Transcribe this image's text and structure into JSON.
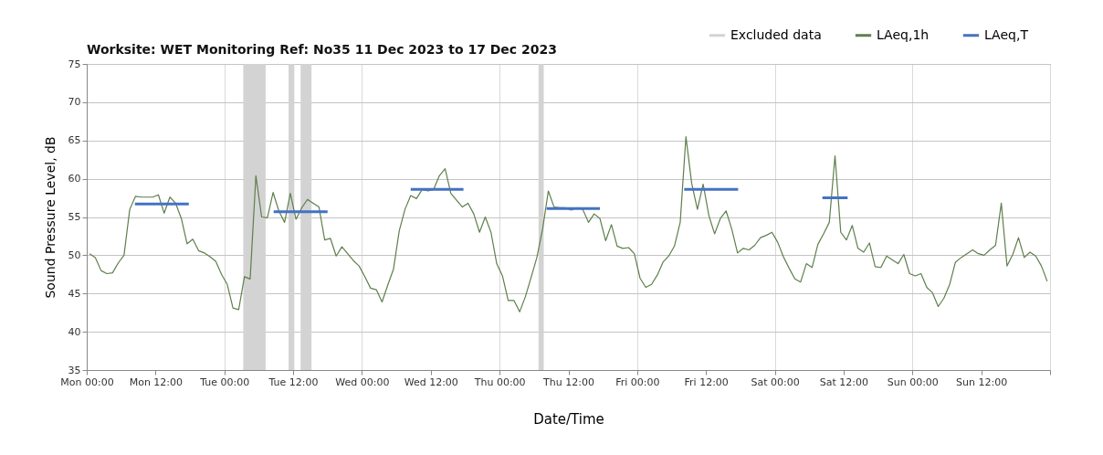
{
  "chart_data": {
    "type": "line",
    "title": "Worksite: WET   Monitoring Ref: No35   11 Dec 2023 to 17 Dec 2023",
    "xlabel": "Date/Time",
    "ylabel": "Sound Pressure Level, dB",
    "xlim": [
      "2023-12-11T00:00",
      "2023-12-18T00:00"
    ],
    "xticks": [
      {
        "value": "2023-12-11T00:00",
        "label": "Mon 00:00"
      },
      {
        "value": "2023-12-11T12:00",
        "label": "Mon 12:00"
      },
      {
        "value": "2023-12-12T00:00",
        "label": "Tue 00:00"
      },
      {
        "value": "2023-12-12T12:00",
        "label": "Tue 12:00"
      },
      {
        "value": "2023-12-13T00:00",
        "label": "Wed 00:00"
      },
      {
        "value": "2023-12-13T12:00",
        "label": "Wed 12:00"
      },
      {
        "value": "2023-12-14T00:00",
        "label": "Thu 00:00"
      },
      {
        "value": "2023-12-14T12:00",
        "label": "Thu 12:00"
      },
      {
        "value": "2023-12-15T00:00",
        "label": "Fri 00:00"
      },
      {
        "value": "2023-12-15T12:00",
        "label": "Fri 12:00"
      },
      {
        "value": "2023-12-16T00:00",
        "label": "Sat 00:00"
      },
      {
        "value": "2023-12-16T12:00",
        "label": "Sat 12:00"
      },
      {
        "value": "2023-12-17T00:00",
        "label": "Sun 00:00"
      },
      {
        "value": "2023-12-17T12:00",
        "label": "Sun 12:00"
      },
      {
        "value": "2023-12-18T00:00",
        "label": null
      }
    ],
    "ylim": [
      35,
      75
    ],
    "yticks": [
      35,
      40,
      45,
      50,
      55,
      60,
      65,
      70,
      75
    ],
    "grid": true,
    "legend": "top right",
    "marker": "none",
    "line_style": "solid",
    "bands": [
      {
        "axis": "x",
        "from": "2023-12-12T03:18",
        "to": "2023-12-12T07:12",
        "label": "Excluded data",
        "color": "#d3d3d3"
      },
      {
        "axis": "x",
        "from": "2023-12-12T11:12",
        "to": "2023-12-12T12:12",
        "color": "#d3d3d3"
      },
      {
        "axis": "x",
        "from": "2023-12-12T13:18",
        "to": "2023-12-12T15:12",
        "color": "#d3d3d3"
      },
      {
        "axis": "x",
        "from": "2023-12-14T06:48",
        "to": "2023-12-14T07:42",
        "color": "#d3d3d3"
      }
    ],
    "series": [
      {
        "name": "LAeq,1h",
        "color": "#5e7f4c",
        "x": [
          "2023-12-11T00:30",
          "2023-12-11T01:30",
          "2023-12-11T02:30",
          "2023-12-11T03:30",
          "2023-12-11T04:30",
          "2023-12-11T05:30",
          "2023-12-11T06:30",
          "2023-12-11T07:30",
          "2023-12-11T08:30",
          "2023-12-11T09:30",
          "2023-12-11T10:30",
          "2023-12-11T11:30",
          "2023-12-11T12:30",
          "2023-12-11T13:30",
          "2023-12-11T14:30",
          "2023-12-11T15:30",
          "2023-12-11T16:30",
          "2023-12-11T17:30",
          "2023-12-11T18:30",
          "2023-12-11T19:30",
          "2023-12-11T20:30",
          "2023-12-11T21:30",
          "2023-12-11T22:30",
          "2023-12-11T23:30",
          "2023-12-12T00:30",
          "2023-12-12T01:30",
          "2023-12-12T02:30",
          "2023-12-12T03:30",
          "2023-12-12T04:30",
          "2023-12-12T05:30",
          "2023-12-12T06:30",
          "2023-12-12T07:30",
          "2023-12-12T08:30",
          "2023-12-12T09:30",
          "2023-12-12T10:30",
          "2023-12-12T11:30",
          "2023-12-12T12:30",
          "2023-12-12T13:30",
          "2023-12-12T14:30",
          "2023-12-12T15:30",
          "2023-12-12T16:30",
          "2023-12-12T17:30",
          "2023-12-12T18:30",
          "2023-12-12T19:30",
          "2023-12-12T20:30",
          "2023-12-12T21:30",
          "2023-12-12T22:30",
          "2023-12-12T23:30",
          "2023-12-13T00:30",
          "2023-12-13T01:30",
          "2023-12-13T02:30",
          "2023-12-13T03:30",
          "2023-12-13T04:30",
          "2023-12-13T05:30",
          "2023-12-13T06:30",
          "2023-12-13T07:30",
          "2023-12-13T08:30",
          "2023-12-13T09:30",
          "2023-12-13T10:30",
          "2023-12-13T11:30",
          "2023-12-13T12:30",
          "2023-12-13T13:30",
          "2023-12-13T14:30",
          "2023-12-13T15:30",
          "2023-12-13T16:30",
          "2023-12-13T17:30",
          "2023-12-13T18:30",
          "2023-12-13T19:30",
          "2023-12-13T20:30",
          "2023-12-13T21:30",
          "2023-12-13T22:30",
          "2023-12-13T23:30",
          "2023-12-14T00:30",
          "2023-12-14T01:30",
          "2023-12-14T02:30",
          "2023-12-14T03:30",
          "2023-12-14T04:30",
          "2023-12-14T05:30",
          "2023-12-14T06:30",
          "2023-12-14T07:30",
          "2023-12-14T08:30",
          "2023-12-14T09:30",
          "2023-12-14T10:30",
          "2023-12-14T11:30",
          "2023-12-14T12:30",
          "2023-12-14T13:30",
          "2023-12-14T14:30",
          "2023-12-14T15:30",
          "2023-12-14T16:30",
          "2023-12-14T17:30",
          "2023-12-14T18:30",
          "2023-12-14T19:30",
          "2023-12-14T20:30",
          "2023-12-14T21:30",
          "2023-12-14T22:30",
          "2023-12-14T23:30",
          "2023-12-15T00:30",
          "2023-12-15T01:30",
          "2023-12-15T02:30",
          "2023-12-15T03:30",
          "2023-12-15T04:30",
          "2023-12-15T05:30",
          "2023-12-15T06:30",
          "2023-12-15T07:30",
          "2023-12-15T08:30",
          "2023-12-15T09:30",
          "2023-12-15T10:30",
          "2023-12-15T11:30",
          "2023-12-15T12:30",
          "2023-12-15T13:30",
          "2023-12-15T14:30",
          "2023-12-15T15:30",
          "2023-12-15T16:30",
          "2023-12-15T17:30",
          "2023-12-15T18:30",
          "2023-12-15T19:30",
          "2023-12-15T20:30",
          "2023-12-15T21:30",
          "2023-12-15T22:30",
          "2023-12-15T23:30",
          "2023-12-16T00:30",
          "2023-12-16T01:30",
          "2023-12-16T02:30",
          "2023-12-16T03:30",
          "2023-12-16T04:30",
          "2023-12-16T05:30",
          "2023-12-16T06:30",
          "2023-12-16T07:30",
          "2023-12-16T08:30",
          "2023-12-16T09:30",
          "2023-12-16T10:30",
          "2023-12-16T11:30",
          "2023-12-16T12:30",
          "2023-12-16T13:30",
          "2023-12-16T14:30",
          "2023-12-16T15:30",
          "2023-12-16T16:30",
          "2023-12-16T17:30",
          "2023-12-16T18:30",
          "2023-12-16T19:30",
          "2023-12-16T20:30",
          "2023-12-16T21:30",
          "2023-12-16T22:30",
          "2023-12-16T23:30",
          "2023-12-17T00:30",
          "2023-12-17T01:30",
          "2023-12-17T02:30",
          "2023-12-17T03:30",
          "2023-12-17T04:30",
          "2023-12-17T05:30",
          "2023-12-17T06:30",
          "2023-12-17T07:30",
          "2023-12-17T08:30",
          "2023-12-17T09:30",
          "2023-12-17T10:30",
          "2023-12-17T11:30",
          "2023-12-17T12:30",
          "2023-12-17T13:30",
          "2023-12-17T14:30",
          "2023-12-17T15:30",
          "2023-12-17T16:30",
          "2023-12-17T17:30",
          "2023-12-17T18:30",
          "2023-12-17T19:30",
          "2023-12-17T20:30",
          "2023-12-17T21:30",
          "2023-12-17T22:30",
          "2023-12-17T23:30"
        ],
        "values": [
          50.2,
          49.7,
          48.0,
          47.6,
          47.7,
          49.0,
          50.0,
          56.0,
          57.7,
          57.6,
          57.6,
          57.6,
          57.9,
          55.5,
          57.6,
          56.8,
          54.8,
          51.5,
          52.1,
          50.6,
          50.3,
          49.8,
          49.2,
          47.5,
          46.2,
          43.1,
          42.9,
          47.2,
          46.9,
          60.4,
          55.0,
          54.9,
          58.2,
          55.8,
          54.3,
          58.1,
          54.7,
          56.2,
          57.3,
          56.8,
          56.3,
          52.0,
          52.2,
          49.9,
          51.1,
          50.2,
          49.3,
          48.6,
          47.2,
          45.7,
          45.5,
          43.9,
          46.1,
          48.2,
          53.2,
          56.0,
          57.8,
          57.4,
          58.6,
          58.4,
          58.6,
          60.4,
          61.3,
          58.1,
          57.2,
          56.3,
          56.8,
          55.4,
          53.0,
          55.0,
          53.0,
          48.9,
          47.3,
          44.1,
          44.1,
          42.6,
          44.6,
          47.1,
          49.7,
          53.4,
          58.4,
          56.3,
          56.2,
          56.2,
          55.9,
          56.2,
          56.0,
          54.3,
          55.4,
          54.8,
          51.9,
          54.0,
          51.2,
          50.9,
          51.0,
          50.2,
          47.0,
          45.8,
          46.2,
          47.4,
          49.1,
          49.9,
          51.2,
          54.3,
          65.5,
          59.4,
          56.0,
          59.3,
          55.2,
          52.8,
          54.8,
          55.8,
          53.4,
          50.3,
          50.9,
          50.7,
          51.3,
          52.3,
          52.6,
          53.0,
          51.7,
          49.8,
          48.3,
          46.9,
          46.5,
          48.9,
          48.4,
          51.4,
          52.8,
          54.3,
          63.0,
          53.0,
          52.0,
          53.9,
          50.9,
          50.4,
          51.6,
          48.5,
          48.4,
          49.9,
          49.4,
          48.9,
          50.1,
          47.6,
          47.3,
          47.6,
          45.8,
          45.1,
          43.3,
          44.4,
          46.2,
          49.1,
          49.7,
          50.2,
          50.7,
          50.2,
          50.0,
          50.7,
          51.3,
          56.8,
          48.6,
          50.1,
          52.3,
          49.7,
          50.4,
          49.9,
          48.6,
          46.6
        ]
      },
      {
        "name": "LAeq,T",
        "color": "#4472c4",
        "x": [
          "2023-12-11T08:24",
          "2023-12-11T17:48",
          "2023-12-11T20:00",
          "2023-12-12T08:36",
          "2023-12-12T18:00",
          "2023-12-12T20:00",
          "2023-12-13T08:30",
          "2023-12-13T17:42",
          "2023-12-13T20:00",
          "2023-12-14T08:12",
          "2023-12-14T17:30",
          "2023-12-14T20:00",
          "2023-12-15T08:12",
          "2023-12-15T17:36",
          "2023-12-15T20:00",
          "2023-12-16T08:18",
          "2023-12-16T12:42"
        ],
        "values": [
          56.7,
          56.7,
          null,
          55.7,
          55.7,
          null,
          58.6,
          58.6,
          null,
          56.1,
          56.1,
          null,
          58.6,
          58.6,
          null,
          57.5,
          57.5
        ]
      }
    ]
  }
}
